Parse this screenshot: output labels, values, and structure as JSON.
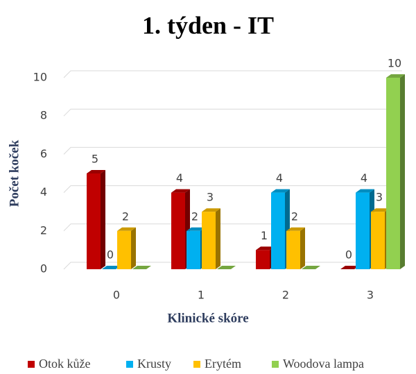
{
  "chart_data": {
    "type": "bar3d",
    "title": "1. týden - IT",
    "x_label": "Klinické skóre",
    "y_label": "Počet koček",
    "categories": [
      "0",
      "1",
      "2",
      "3"
    ],
    "series": [
      {
        "name": "Otok kůže",
        "color": "#c00000",
        "values": [
          5,
          4,
          1,
          0
        ]
      },
      {
        "name": "Krusty",
        "color": "#00b0f0",
        "values": [
          0,
          2,
          4,
          4
        ]
      },
      {
        "name": "Erytém",
        "color": "#ffc000",
        "values": [
          2,
          3,
          2,
          3
        ]
      },
      {
        "name": "Woodova lampa",
        "color": "#92d050",
        "values": [
          0,
          0,
          0,
          10
        ],
        "value_labels": [
          null,
          null,
          null,
          "10"
        ]
      }
    ],
    "ylim": [
      0,
      10
    ],
    "yticks": [
      0,
      2,
      4,
      6,
      8,
      10
    ],
    "grid": true,
    "legend": "bottom"
  }
}
